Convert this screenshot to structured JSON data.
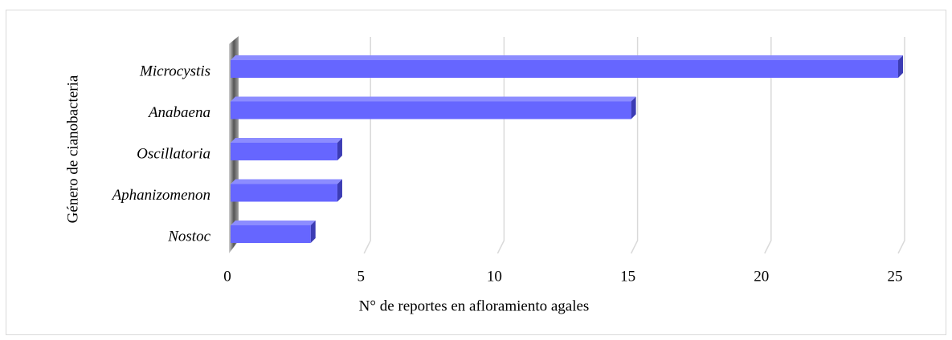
{
  "chart_data": {
    "type": "bar",
    "orientation": "horizontal",
    "categories": [
      "Microcystis",
      "Anabaena",
      "Oscillatoria",
      "Aphanizomenon",
      "Nostoc"
    ],
    "values": [
      25,
      15,
      4,
      4,
      3
    ],
    "color": "#6666ff",
    "xlabel": "N° de reportes en afloramiento agales",
    "ylabel": "Género de cianobacteria",
    "xlim": [
      0,
      25
    ],
    "xticks": [
      0,
      5,
      10,
      15,
      20,
      25
    ],
    "grid": true
  }
}
